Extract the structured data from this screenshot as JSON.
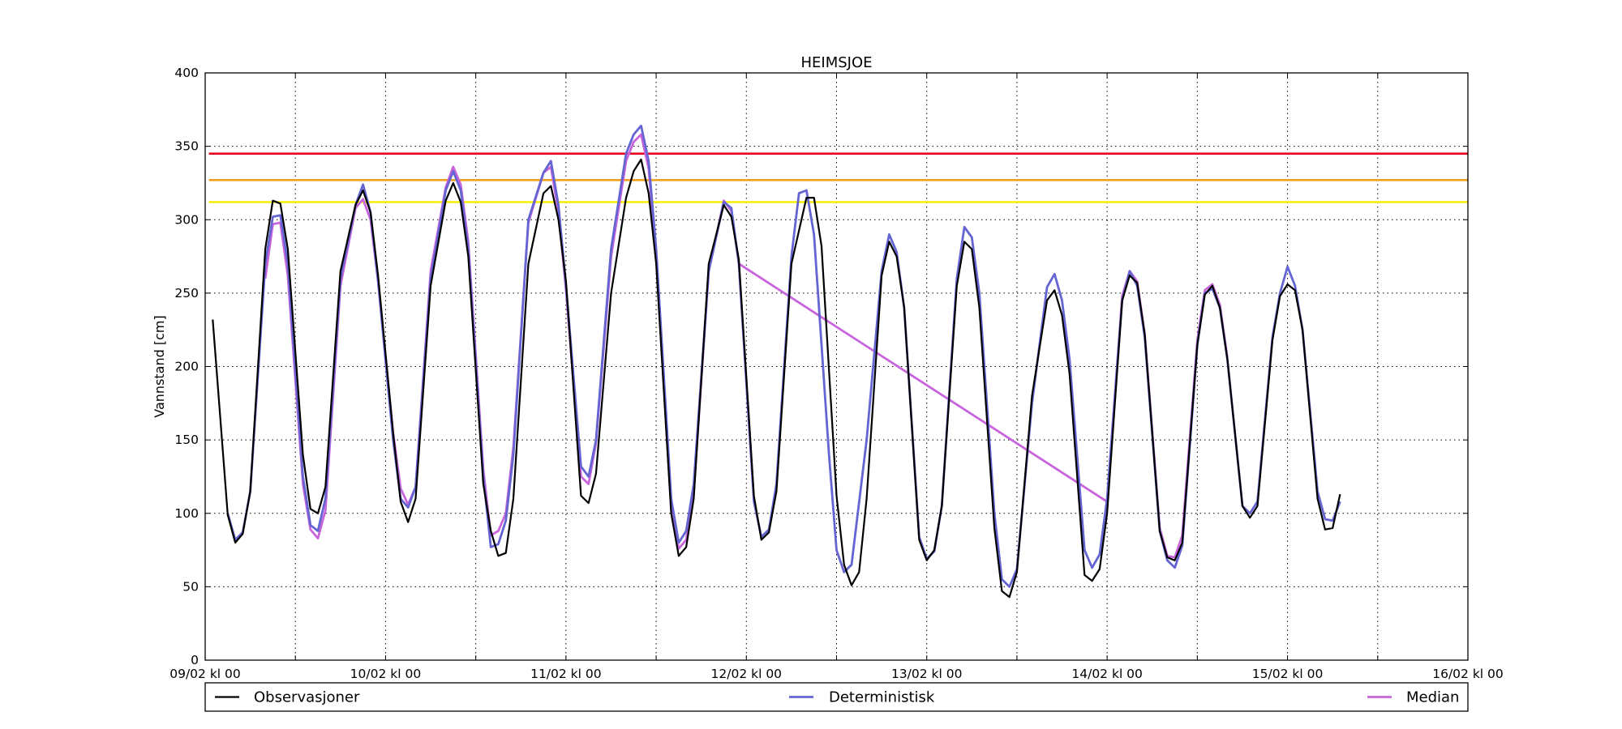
{
  "chart_data": {
    "type": "line",
    "title": "HEIMSJOE",
    "xlabel": "",
    "ylabel": "Vannstand [cm]",
    "ylim": [
      0,
      400
    ],
    "yticks": [
      0,
      50,
      100,
      150,
      200,
      250,
      300,
      350,
      400
    ],
    "xlim": [
      0,
      168
    ],
    "xticks": [
      {
        "at": 0,
        "label": "09/02 kl 00"
      },
      {
        "at": 12,
        "label": ""
      },
      {
        "at": 24,
        "label": "10/02 kl 00"
      },
      {
        "at": 36,
        "label": ""
      },
      {
        "at": 48,
        "label": "11/02 kl 00"
      },
      {
        "at": 60,
        "label": ""
      },
      {
        "at": 72,
        "label": "12/02 kl 00"
      },
      {
        "at": 84,
        "label": ""
      },
      {
        "at": 96,
        "label": "13/02 kl 00"
      },
      {
        "at": 108,
        "label": ""
      },
      {
        "at": 120,
        "label": "14/02 kl 00"
      },
      {
        "at": 132,
        "label": ""
      },
      {
        "at": 144,
        "label": "15/02 kl 00"
      },
      {
        "at": 156,
        "label": ""
      },
      {
        "at": 168,
        "label": "16/02 kl 00"
      }
    ],
    "grid": true,
    "legend_position": "bottom",
    "thresholds": [
      {
        "value": 345,
        "color": "#e8001c"
      },
      {
        "value": 327,
        "color": "#f0a020"
      },
      {
        "value": 312,
        "color": "#f5ed00"
      }
    ],
    "series": [
      {
        "name": "Observasjoner",
        "color": "#000000",
        "points": [
          [
            1,
            232
          ],
          [
            3,
            99
          ],
          [
            4,
            80
          ],
          [
            5,
            86
          ],
          [
            6,
            115
          ],
          [
            8,
            280
          ],
          [
            9,
            313
          ],
          [
            10,
            311
          ],
          [
            11,
            280
          ],
          [
            13,
            140
          ],
          [
            14,
            103
          ],
          [
            15,
            100
          ],
          [
            16,
            118
          ],
          [
            18,
            265
          ],
          [
            20,
            310
          ],
          [
            21,
            320
          ],
          [
            22,
            305
          ],
          [
            23,
            262
          ],
          [
            25,
            155
          ],
          [
            26,
            108
          ],
          [
            27,
            94
          ],
          [
            28,
            110
          ],
          [
            30,
            255
          ],
          [
            32,
            313
          ],
          [
            33,
            325
          ],
          [
            34,
            312
          ],
          [
            35,
            275
          ],
          [
            37,
            120
          ],
          [
            38,
            88
          ],
          [
            39,
            71
          ],
          [
            40,
            73
          ],
          [
            41,
            110
          ],
          [
            43,
            270
          ],
          [
            45,
            318
          ],
          [
            46,
            323
          ],
          [
            47,
            300
          ],
          [
            48,
            258
          ],
          [
            50,
            112
          ],
          [
            51,
            107
          ],
          [
            52,
            127
          ],
          [
            54,
            250
          ],
          [
            56,
            315
          ],
          [
            57,
            333
          ],
          [
            58,
            341
          ],
          [
            59,
            318
          ],
          [
            60,
            270
          ],
          [
            62,
            100
          ],
          [
            63,
            71
          ],
          [
            64,
            77
          ],
          [
            65,
            110
          ],
          [
            67,
            270
          ],
          [
            69,
            310
          ],
          [
            70,
            302
          ],
          [
            71,
            273
          ],
          [
            73,
            112
          ],
          [
            74,
            82
          ],
          [
            75,
            87
          ],
          [
            76,
            115
          ],
          [
            78,
            270
          ],
          [
            80,
            315
          ],
          [
            81,
            315
          ],
          [
            82,
            282
          ],
          [
            84,
            112
          ],
          [
            85,
            65
          ],
          [
            86,
            51
          ],
          [
            87,
            60
          ],
          [
            88,
            110
          ],
          [
            90,
            262
          ],
          [
            91,
            285
          ],
          [
            92,
            275
          ],
          [
            93,
            240
          ],
          [
            95,
            82
          ],
          [
            96,
            68
          ],
          [
            97,
            75
          ],
          [
            98,
            105
          ],
          [
            100,
            255
          ],
          [
            101,
            285
          ],
          [
            102,
            280
          ],
          [
            103,
            240
          ],
          [
            105,
            90
          ],
          [
            106,
            47
          ],
          [
            107,
            43
          ],
          [
            108,
            60
          ],
          [
            110,
            180
          ],
          [
            112,
            245
          ],
          [
            113,
            252
          ],
          [
            114,
            235
          ],
          [
            115,
            195
          ],
          [
            117,
            58
          ],
          [
            118,
            54
          ],
          [
            119,
            62
          ],
          [
            120,
            100
          ],
          [
            122,
            245
          ],
          [
            123,
            262
          ],
          [
            124,
            257
          ],
          [
            125,
            222
          ],
          [
            127,
            88
          ],
          [
            128,
            70
          ],
          [
            129,
            68
          ],
          [
            130,
            80
          ],
          [
            132,
            215
          ],
          [
            133,
            249
          ],
          [
            134,
            255
          ],
          [
            135,
            240
          ],
          [
            136,
            205
          ],
          [
            138,
            105
          ],
          [
            139,
            97
          ],
          [
            140,
            105
          ],
          [
            142,
            218
          ],
          [
            143,
            248
          ],
          [
            144,
            256
          ],
          [
            145,
            252
          ],
          [
            146,
            225
          ],
          [
            148,
            110
          ],
          [
            149,
            89
          ],
          [
            150,
            90
          ],
          [
            151,
            113
          ]
        ]
      },
      {
        "name": "Deterministisk",
        "color": "#6464d2",
        "points": [
          [
            3,
            100
          ],
          [
            4,
            82
          ],
          [
            5,
            87
          ],
          [
            6,
            115
          ],
          [
            8,
            270
          ],
          [
            9,
            302
          ],
          [
            10,
            303
          ],
          [
            11,
            270
          ],
          [
            13,
            125
          ],
          [
            14,
            92
          ],
          [
            15,
            88
          ],
          [
            16,
            110
          ],
          [
            18,
            260
          ],
          [
            20,
            310
          ],
          [
            21,
            324
          ],
          [
            22,
            305
          ],
          [
            23,
            258
          ],
          [
            25,
            150
          ],
          [
            26,
            110
          ],
          [
            27,
            104
          ],
          [
            28,
            118
          ],
          [
            30,
            260
          ],
          [
            32,
            320
          ],
          [
            33,
            333
          ],
          [
            34,
            320
          ],
          [
            35,
            280
          ],
          [
            37,
            125
          ],
          [
            38,
            77
          ],
          [
            39,
            79
          ],
          [
            40,
            95
          ],
          [
            41,
            140
          ],
          [
            43,
            300
          ],
          [
            45,
            332
          ],
          [
            46,
            340
          ],
          [
            47,
            310
          ],
          [
            48,
            255
          ],
          [
            50,
            132
          ],
          [
            51,
            125
          ],
          [
            52,
            150
          ],
          [
            54,
            280
          ],
          [
            56,
            345
          ],
          [
            57,
            358
          ],
          [
            58,
            364
          ],
          [
            59,
            340
          ],
          [
            60,
            280
          ],
          [
            62,
            110
          ],
          [
            63,
            80
          ],
          [
            64,
            88
          ],
          [
            65,
            120
          ],
          [
            67,
            265
          ],
          [
            69,
            312
          ],
          [
            70,
            308
          ],
          [
            71,
            270
          ],
          [
            73,
            108
          ],
          [
            74,
            84
          ],
          [
            75,
            89
          ],
          [
            76,
            120
          ],
          [
            78,
            275
          ],
          [
            79,
            318
          ],
          [
            80,
            320
          ],
          [
            81,
            290
          ],
          [
            83,
            140
          ],
          [
            84,
            75
          ],
          [
            85,
            60
          ],
          [
            86,
            65
          ],
          [
            88,
            150
          ],
          [
            90,
            265
          ],
          [
            91,
            290
          ],
          [
            92,
            278
          ],
          [
            93,
            240
          ],
          [
            95,
            84
          ],
          [
            96,
            69
          ],
          [
            97,
            74
          ],
          [
            98,
            105
          ],
          [
            100,
            260
          ],
          [
            101,
            295
          ],
          [
            102,
            288
          ],
          [
            103,
            250
          ],
          [
            105,
            100
          ],
          [
            106,
            55
          ],
          [
            107,
            50
          ],
          [
            108,
            62
          ],
          [
            110,
            175
          ],
          [
            112,
            254
          ],
          [
            113,
            263
          ],
          [
            114,
            245
          ],
          [
            115,
            205
          ],
          [
            117,
            75
          ],
          [
            118,
            63
          ],
          [
            119,
            72
          ],
          [
            120,
            110
          ],
          [
            122,
            245
          ],
          [
            123,
            265
          ],
          [
            124,
            255
          ],
          [
            125,
            220
          ],
          [
            127,
            88
          ],
          [
            128,
            68
          ],
          [
            129,
            63
          ],
          [
            130,
            78
          ],
          [
            132,
            215
          ],
          [
            133,
            250
          ],
          [
            134,
            253
          ],
          [
            135,
            240
          ],
          [
            136,
            205
          ],
          [
            138,
            105
          ],
          [
            139,
            100
          ],
          [
            140,
            108
          ],
          [
            142,
            220
          ],
          [
            143,
            250
          ],
          [
            144,
            268
          ],
          [
            145,
            255
          ],
          [
            146,
            225
          ],
          [
            148,
            115
          ],
          [
            149,
            96
          ],
          [
            150,
            95
          ],
          [
            151,
            108
          ]
        ]
      },
      {
        "name": "Median",
        "color": "#c864dc",
        "points": [
          [
            8,
            260
          ],
          [
            9,
            297
          ],
          [
            10,
            298
          ],
          [
            11,
            262
          ],
          [
            13,
            120
          ],
          [
            14,
            89
          ],
          [
            15,
            83
          ],
          [
            16,
            102
          ],
          [
            18,
            255
          ],
          [
            20,
            308
          ],
          [
            21,
            314
          ],
          [
            22,
            300
          ],
          [
            23,
            258
          ],
          [
            25,
            155
          ],
          [
            26,
            117
          ],
          [
            27,
            106
          ],
          [
            28,
            118
          ],
          [
            30,
            265
          ],
          [
            32,
            322
          ],
          [
            33,
            336
          ],
          [
            34,
            324
          ],
          [
            35,
            285
          ],
          [
            37,
            130
          ],
          [
            38,
            85
          ],
          [
            39,
            88
          ],
          [
            40,
            100
          ],
          [
            41,
            145
          ],
          [
            43,
            298
          ],
          [
            45,
            332
          ],
          [
            46,
            336
          ],
          [
            47,
            305
          ],
          [
            48,
            252
          ],
          [
            50,
            125
          ],
          [
            51,
            120
          ],
          [
            52,
            148
          ],
          [
            54,
            275
          ],
          [
            56,
            340
          ],
          [
            57,
            353
          ],
          [
            58,
            358
          ],
          [
            59,
            335
          ],
          [
            60,
            275
          ],
          [
            62,
            103
          ],
          [
            63,
            76
          ],
          [
            64,
            82
          ],
          [
            65,
            115
          ],
          [
            67,
            265
          ],
          [
            69,
            313
          ],
          [
            70,
            306
          ],
          [
            71,
            270
          ],
          [
            120,
            108
          ],
          [
            122,
            248
          ],
          [
            123,
            265
          ],
          [
            124,
            258
          ],
          [
            125,
            222
          ],
          [
            127,
            90
          ],
          [
            128,
            71
          ],
          [
            129,
            70
          ],
          [
            130,
            85
          ],
          [
            132,
            218
          ],
          [
            133,
            252
          ],
          [
            134,
            256
          ],
          [
            135,
            242
          ],
          [
            136,
            206
          ]
        ]
      }
    ]
  }
}
